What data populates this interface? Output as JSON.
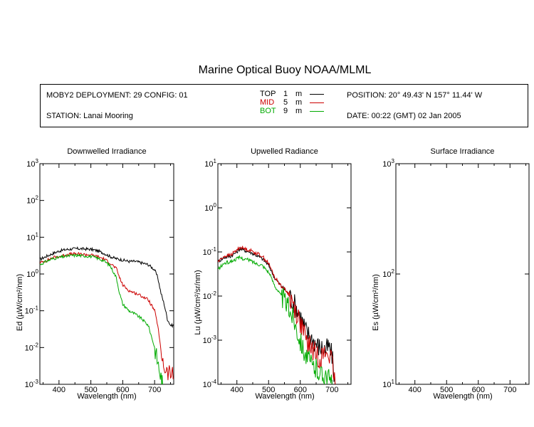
{
  "title": "Marine Optical Buoy NOAA/MLML",
  "header": {
    "deployment": "MOBY2 DEPLOYMENT: 29 CONFIG: 01",
    "station": "STATION: Lanai Mooring",
    "position": "POSITION: 20° 49.43' N   157° 11.44' W",
    "date": "DATE: 00:22 (GMT) 02 Jan 2005",
    "legend": [
      {
        "name": "TOP",
        "depth": "1",
        "unit": "m",
        "color": "#000000"
      },
      {
        "name": "MID",
        "depth": "5",
        "unit": "m",
        "color": "#cc0000"
      },
      {
        "name": "BOT",
        "depth": "9",
        "unit": "m",
        "color": "#00aa00"
      }
    ]
  },
  "chart_data": [
    {
      "type": "line",
      "title": "Downwelled Irradiance",
      "xlabel": "Wavelength (nm)",
      "ylabel": "Ed  (µW/cm²/nm)",
      "xlim": [
        340,
        760
      ],
      "ylim": [
        0.001,
        1000
      ],
      "yscale": "log",
      "xticks": [
        "400",
        "500",
        "600",
        "700"
      ],
      "yticks": [
        "10^-3",
        "10^-2",
        "10^-1",
        "10^0",
        "10^1",
        "10^2",
        "10^3"
      ],
      "series": [
        {
          "name": "TOP",
          "x": [
            340,
            360,
            380,
            400,
            420,
            440,
            460,
            480,
            500,
            520,
            540,
            560,
            580,
            600,
            620,
            640,
            660,
            680,
            700,
            710,
            720,
            730,
            740,
            750,
            760
          ],
          "y": [
            2.5,
            3,
            3.6,
            4.2,
            4.6,
            4.8,
            4.9,
            4.8,
            4.7,
            4.3,
            3.7,
            3.0,
            2.6,
            2.4,
            2.2,
            2.2,
            2.0,
            1.8,
            1.3,
            0.8,
            0.3,
            0.15,
            0.06,
            0.04,
            0.04
          ]
        },
        {
          "name": "MID",
          "x": [
            340,
            360,
            380,
            400,
            420,
            440,
            460,
            480,
            500,
            520,
            540,
            560,
            580,
            590,
            600,
            620,
            640,
            660,
            680,
            700,
            710,
            720,
            730,
            740,
            750,
            760
          ],
          "y": [
            2.0,
            2.3,
            2.8,
            3.0,
            3.3,
            3.5,
            3.5,
            3.4,
            3.3,
            3.0,
            2.6,
            2.0,
            1.4,
            0.8,
            0.5,
            0.35,
            0.3,
            0.25,
            0.2,
            0.1,
            0.04,
            0.008,
            0.003,
            0.002,
            0.002,
            0.0015
          ]
        },
        {
          "name": "BOT",
          "x": [
            340,
            360,
            380,
            400,
            420,
            440,
            460,
            480,
            500,
            520,
            540,
            560,
            580,
            590,
            600,
            620,
            640,
            660,
            680,
            700,
            710,
            720,
            725
          ],
          "y": [
            1.8,
            2.2,
            2.6,
            2.8,
            3.0,
            3.2,
            3.2,
            3.1,
            3.0,
            2.7,
            2.3,
            1.7,
            0.8,
            0.3,
            0.15,
            0.1,
            0.08,
            0.06,
            0.04,
            0.01,
            0.004,
            0.0015,
            0.001
          ]
        }
      ]
    },
    {
      "type": "line",
      "title": "Upwelled Radiance",
      "xlabel": "Wavelength (nm)",
      "ylabel": "Lu  (µW/cm²/sr/nm)",
      "xlim": [
        340,
        760
      ],
      "ylim": [
        0.0001,
        10
      ],
      "yscale": "log",
      "xticks": [
        "400",
        "500",
        "600",
        "700"
      ],
      "yticks": [
        "10^-4",
        "10^-3",
        "10^-2",
        "10^-1",
        "10^0",
        "10^1"
      ],
      "series": [
        {
          "name": "TOP",
          "x": [
            340,
            360,
            380,
            400,
            410,
            420,
            440,
            460,
            480,
            500,
            520,
            540,
            560,
            580,
            600,
            620,
            640,
            660,
            680,
            690,
            700,
            710
          ],
          "y": [
            0.06,
            0.075,
            0.08,
            0.1,
            0.12,
            0.11,
            0.1,
            0.085,
            0.07,
            0.05,
            0.025,
            0.017,
            0.012,
            0.007,
            0.0035,
            0.0015,
            0.001,
            0.0007,
            0.0006,
            0.0007,
            0.00045,
            0.0001
          ]
        },
        {
          "name": "MID",
          "x": [
            340,
            360,
            380,
            400,
            410,
            420,
            440,
            460,
            480,
            500,
            520,
            540,
            560,
            580,
            600,
            620,
            640,
            660,
            680,
            690,
            700,
            710
          ],
          "y": [
            0.06,
            0.08,
            0.085,
            0.11,
            0.13,
            0.12,
            0.11,
            0.095,
            0.08,
            0.055,
            0.026,
            0.017,
            0.012,
            0.006,
            0.0025,
            0.0009,
            0.0006,
            0.0004,
            0.0005,
            0.0005,
            0.0003,
            0.0001
          ]
        },
        {
          "name": "BOT",
          "x": [
            340,
            360,
            380,
            400,
            410,
            420,
            440,
            460,
            480,
            500,
            520,
            540,
            560,
            580,
            600,
            620,
            640,
            660,
            670,
            680,
            690,
            700
          ],
          "y": [
            0.04,
            0.055,
            0.06,
            0.07,
            0.075,
            0.07,
            0.065,
            0.055,
            0.05,
            0.035,
            0.017,
            0.01,
            0.006,
            0.003,
            0.001,
            0.0004,
            0.00025,
            0.0002,
            0.00015,
            0.0002,
            0.00013,
            0.0001
          ]
        }
      ]
    },
    {
      "type": "line",
      "title": "Surface Irradiance",
      "xlabel": "Wavelength (nm)",
      "ylabel": "Es  (µW/cm²/nm)",
      "xlim": [
        340,
        760
      ],
      "ylim": [
        10,
        1000
      ],
      "yscale": "log",
      "xticks": [
        "400",
        "500",
        "600",
        "700"
      ],
      "yticks": [
        "10^1",
        "10^2",
        "10^3"
      ],
      "series": []
    }
  ]
}
